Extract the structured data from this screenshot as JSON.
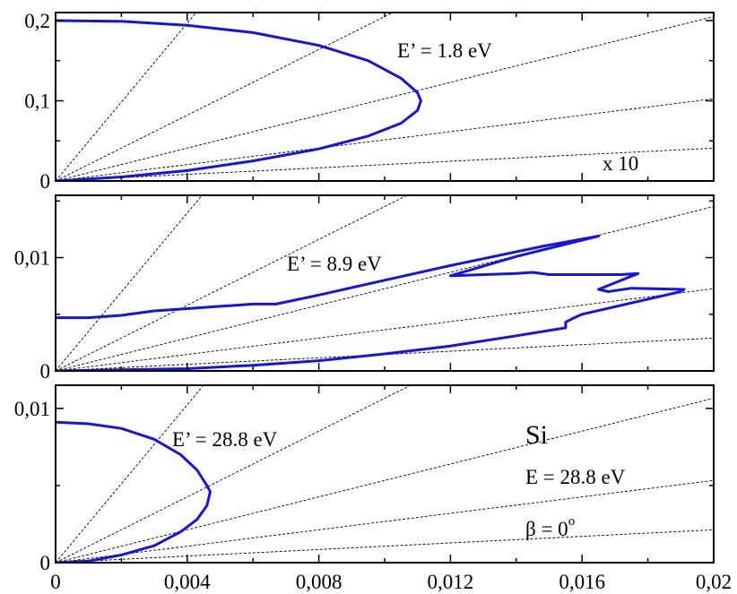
{
  "chart_data": [
    {
      "type": "line",
      "panel": "top",
      "xlim": [
        0,
        0.02
      ],
      "ylim": [
        0,
        0.21
      ],
      "y_ticks": [
        0,
        0.1,
        0.2
      ],
      "y_tick_labels": [
        "0",
        "0,1",
        "0,2"
      ],
      "annotations": {
        "energy": "E’ = 1.8 eV",
        "scale": "x 10"
      },
      "series": [
        {
          "color": "#1414e6",
          "points": [
            [
              0,
              0.2
            ],
            [
              0.002,
              0.199
            ],
            [
              0.004,
              0.194
            ],
            [
              0.006,
              0.185
            ],
            [
              0.008,
              0.169
            ],
            [
              0.0095,
              0.15
            ],
            [
              0.0105,
              0.128
            ],
            [
              0.011,
              0.11
            ],
            [
              0.0111,
              0.1
            ],
            [
              0.011,
              0.088
            ],
            [
              0.0105,
              0.072
            ],
            [
              0.0095,
              0.056
            ],
            [
              0.008,
              0.04
            ],
            [
              0.006,
              0.025
            ],
            [
              0.004,
              0.013
            ],
            [
              0.002,
              0.005
            ],
            [
              0,
              0
            ]
          ]
        }
      ]
    },
    {
      "type": "line",
      "panel": "middle",
      "xlim": [
        0,
        0.02
      ],
      "ylim": [
        0,
        0.0155
      ],
      "y_ticks": [
        0,
        0.01
      ],
      "y_tick_labels": [
        "0",
        "0,01"
      ],
      "annotations": {
        "energy": "E’ = 8.9 eV"
      },
      "series": [
        {
          "color": "#1414e6",
          "points": [
            [
              0,
              0.0047
            ],
            [
              0.001,
              0.0047
            ],
            [
              0.002,
              0.0049
            ],
            [
              0.003,
              0.0053
            ],
            [
              0.004,
              0.0055
            ],
            [
              0.005,
              0.0057
            ],
            [
              0.006,
              0.0059
            ],
            [
              0.0067,
              0.0059
            ],
            [
              0.008,
              0.0067
            ],
            [
              0.01,
              0.008
            ],
            [
              0.012,
              0.0093
            ],
            [
              0.0148,
              0.011
            ],
            [
              0.0165,
              0.0119
            ],
            [
              0.014,
              0.0101
            ],
            [
              0.012,
              0.0084
            ],
            [
              0.014,
              0.0086
            ],
            [
              0.0145,
              0.0087
            ],
            [
              0.015,
              0.0085
            ],
            [
              0.0172,
              0.0085
            ],
            [
              0.0177,
              0.0086
            ],
            [
              0.0165,
              0.0072
            ],
            [
              0.0168,
              0.007
            ],
            [
              0.0175,
              0.0073
            ],
            [
              0.0191,
              0.0072
            ],
            [
              0.019,
              0.007
            ],
            [
              0.0172,
              0.0058
            ],
            [
              0.016,
              0.005
            ],
            [
              0.0157,
              0.0046
            ],
            [
              0.0155,
              0.0043
            ],
            [
              0.0155,
              0.0038
            ],
            [
              0.014,
              0.0031
            ],
            [
              0.012,
              0.0022
            ],
            [
              0.01,
              0.0015
            ],
            [
              0.008,
              0.0009
            ],
            [
              0.006,
              0.0005
            ],
            [
              0.004,
              0.0002
            ],
            [
              0.002,
              0.0001
            ],
            [
              0,
              0
            ]
          ]
        }
      ]
    },
    {
      "type": "line",
      "panel": "bottom",
      "xlim": [
        0,
        0.02
      ],
      "ylim": [
        0,
        0.0115
      ],
      "y_ticks": [
        0,
        0.01
      ],
      "y_tick_labels": [
        "0",
        "0,01"
      ],
      "x_ticks": [
        0,
        0.004,
        0.008,
        0.012,
        0.016,
        0.02
      ],
      "x_tick_labels": [
        "0",
        "0,004",
        "0,008",
        "0,012",
        "0,016",
        "0,02"
      ],
      "annotations": {
        "energy": "E’ = 28.8 eV",
        "element": "Si",
        "beam_energy": "E = 28.8 eV",
        "beta": "β = 0",
        "beta_superscript": "o"
      },
      "series": [
        {
          "color": "#1414e6",
          "points": [
            [
              0,
              0.0091
            ],
            [
              0.001,
              0.009
            ],
            [
              0.002,
              0.0087
            ],
            [
              0.003,
              0.008
            ],
            [
              0.0038,
              0.007
            ],
            [
              0.0043,
              0.006
            ],
            [
              0.0046,
              0.005
            ],
            [
              0.0047,
              0.0046
            ],
            [
              0.0046,
              0.0037
            ],
            [
              0.0043,
              0.0028
            ],
            [
              0.0038,
              0.002
            ],
            [
              0.003,
              0.0011
            ],
            [
              0.002,
              0.0005
            ],
            [
              0.001,
              0.0001
            ],
            [
              0,
              0
            ]
          ]
        }
      ]
    }
  ]
}
